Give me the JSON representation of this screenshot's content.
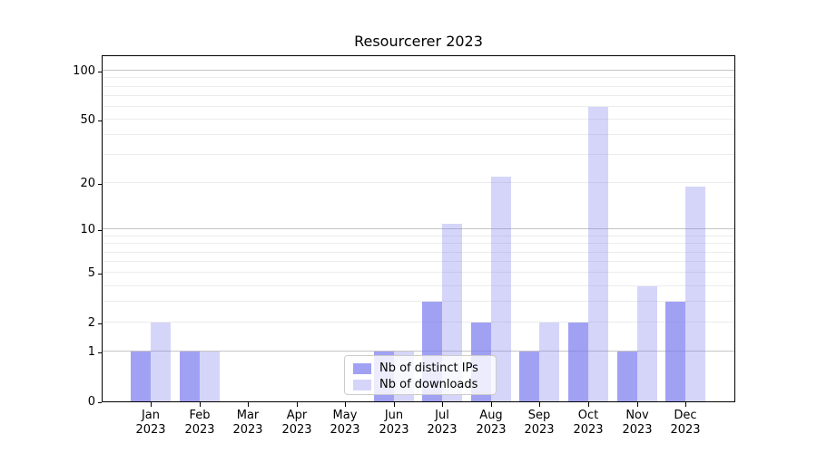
{
  "chart_data": {
    "type": "bar",
    "title": "Resourcerer 2023",
    "categories": [
      "Jan 2023",
      "Feb 2023",
      "Mar 2023",
      "Apr 2023",
      "May 2023",
      "Jun 2023",
      "Jul 2023",
      "Aug 2023",
      "Sep 2023",
      "Oct 2023",
      "Nov 2023",
      "Dec 2023"
    ],
    "series": [
      {
        "name": "Nb of distinct IPs",
        "color": "rgba(125,125,240,0.72)",
        "values": [
          1,
          1,
          0,
          0,
          0,
          1,
          3,
          2,
          1,
          2,
          1,
          3
        ]
      },
      {
        "name": "Nb of downloads",
        "color": "rgba(125,125,240,0.32)",
        "values": [
          2,
          1,
          0,
          0,
          0,
          1,
          11,
          22,
          2,
          60,
          4,
          19
        ]
      }
    ],
    "xlabel": "",
    "ylabel": "",
    "yscale": "log1p",
    "ylim": [
      0,
      126
    ],
    "yticks": [
      {
        "value": 0,
        "label": "0"
      },
      {
        "value": 1,
        "label": "1"
      },
      {
        "value": 2,
        "label": "2"
      },
      {
        "value": 5,
        "label": "5"
      },
      {
        "value": 10,
        "label": "10"
      },
      {
        "value": 20,
        "label": "20"
      },
      {
        "value": 50,
        "label": "50"
      },
      {
        "value": 100,
        "label": "100"
      }
    ],
    "major_gridlines": [
      1,
      10,
      100
    ],
    "minor_gridlines": [
      2,
      3,
      4,
      5,
      6,
      7,
      8,
      9,
      20,
      30,
      40,
      50,
      60,
      70,
      80,
      90
    ],
    "grid": true,
    "legend_position": "lower center inside axes"
  },
  "legend": {
    "items": [
      {
        "label": "Nb of distinct IPs",
        "color": "rgba(125,125,240,0.72)"
      },
      {
        "label": "Nb of downloads",
        "color": "rgba(125,125,240,0.32)"
      }
    ]
  },
  "colors": {
    "bar_base": "#7d7df0",
    "major_grid": "#c4c4c4",
    "minor_grid": "#ececec",
    "spine": "#000000",
    "background": "#ffffff"
  }
}
